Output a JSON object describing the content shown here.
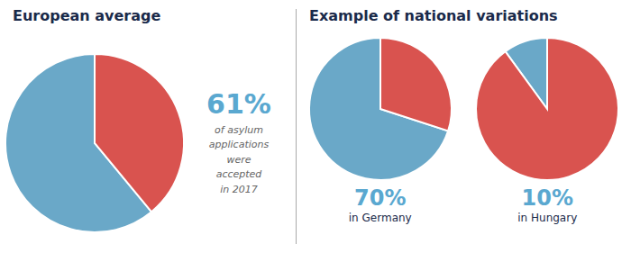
{
  "chart_data": [
    {
      "type": "pie",
      "title": "European average",
      "values": [
        61,
        39
      ],
      "colors": [
        "#6aa8c8",
        "#d9534f"
      ],
      "annotations": [
        "61%",
        "of asylum\napplications\nwere\naccepted\nin 2017"
      ]
    },
    {
      "type": "pie",
      "title": "Example of national variations",
      "values": [
        70,
        30
      ],
      "colors": [
        "#6aa8c8",
        "#d9534f"
      ],
      "annotations": [
        "70%",
        "in Germany"
      ]
    },
    {
      "type": "pie",
      "values": [
        10,
        90
      ],
      "colors": [
        "#6aa8c8",
        "#d9534f"
      ],
      "annotations": [
        "10%",
        "in Hungary"
      ]
    }
  ]
}
